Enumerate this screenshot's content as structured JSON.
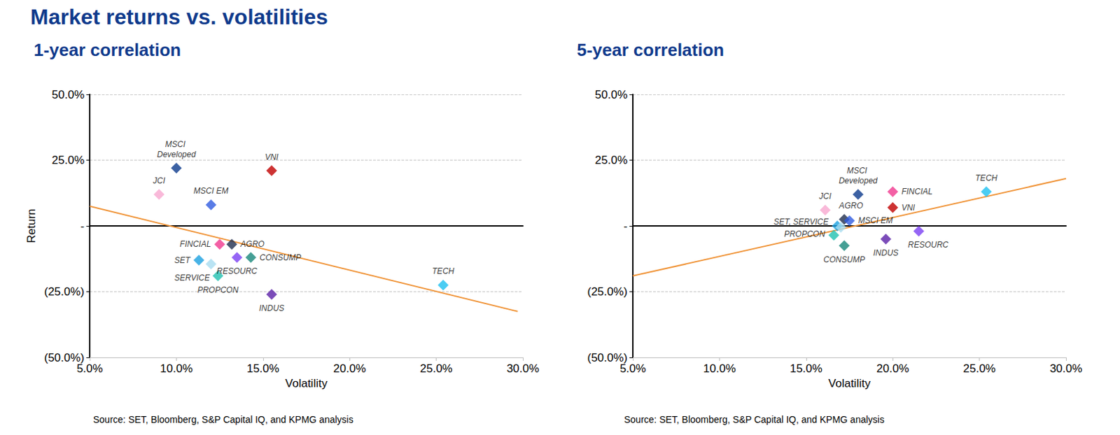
{
  "title": "Market returns vs. volatilities",
  "chart_data": [
    {
      "type": "scatter",
      "title": "1-year correlation",
      "xlabel": "Volatility",
      "ylabel": "Return",
      "source": "Source: SET, Bloomberg, S&P Capital IQ, and KPMG analysis",
      "xlim": [
        5,
        30
      ],
      "ylim": [
        -50,
        50
      ],
      "grid": true,
      "xticks": [
        {
          "value": 5,
          "label": "5.0%"
        },
        {
          "value": 10,
          "label": "10.0%"
        },
        {
          "value": 15,
          "label": "15.0%"
        },
        {
          "value": 20,
          "label": "20.0%"
        },
        {
          "value": 25,
          "label": "25.0%"
        },
        {
          "value": 30,
          "label": "30.0%"
        }
      ],
      "yticks": [
        {
          "value": -50,
          "label": "(50.0%)"
        },
        {
          "value": -25,
          "label": "(25.0%)"
        },
        {
          "value": 0,
          "label": "-"
        },
        {
          "value": 25,
          "label": "25.0%"
        },
        {
          "value": 50,
          "label": "50.0%"
        }
      ],
      "series": [
        {
          "type": "scatter",
          "marker": "diamond",
          "labels": [
            "MSCI Developed",
            "VNI",
            "JCI",
            "MSCI EM",
            "FINCIAL",
            "AGRO",
            "CONSUMP",
            "RESOURC",
            "SET",
            "SERVICE",
            "PROPCON",
            "INDUS",
            "TECH"
          ],
          "x": [
            10.0,
            15.5,
            9.0,
            12.0,
            12.5,
            13.2,
            14.3,
            13.5,
            11.3,
            12.0,
            12.4,
            15.5,
            25.4
          ],
          "values": [
            22,
            21,
            12,
            8,
            -7,
            -7,
            -12,
            -12,
            -13,
            -14.5,
            -19,
            -26,
            -22.5
          ],
          "colors": [
            "#0b3a8c",
            "#c00000",
            "#f7a8cf",
            "#2f5be0",
            "#f0388f",
            "#1f2d4d",
            "#17877a",
            "#7b3ff2",
            "#1aa0e0",
            "#a8dcf0",
            "#20c0b0",
            "#5a1fa8",
            "#1ec0f0"
          ]
        },
        {
          "type": "line",
          "line_style": "solid",
          "color": "#f0953a",
          "x": [
            5,
            29.7
          ],
          "values": [
            7.5,
            -32.5
          ]
        }
      ]
    },
    {
      "type": "scatter",
      "title": "5-year correlation",
      "xlabel": "Volatility",
      "source": "Source: SET, Bloomberg, S&P Capital IQ, and KPMG analysis",
      "xlim": [
        5,
        30
      ],
      "ylim": [
        -50,
        50
      ],
      "grid": true,
      "xticks": [
        {
          "value": 5,
          "label": "5.0%"
        },
        {
          "value": 10,
          "label": "10.0%"
        },
        {
          "value": 15,
          "label": "15.0%"
        },
        {
          "value": 20,
          "label": "20.0%"
        },
        {
          "value": 25,
          "label": "25.0%"
        },
        {
          "value": 30,
          "label": "30.0%"
        }
      ],
      "yticks": [
        {
          "value": -50,
          "label": "(50.0%)"
        },
        {
          "value": -25,
          "label": "(25.0%)"
        },
        {
          "value": 0,
          "label": "-"
        },
        {
          "value": 25,
          "label": "25.0%"
        },
        {
          "value": 50,
          "label": "50.0%"
        }
      ],
      "series": [
        {
          "type": "scatter",
          "marker": "diamond",
          "labels": [
            "MSCI Developed",
            "FINCIAL",
            "TECH",
            "JCI",
            "VNI",
            "AGRO",
            "MSCI EM",
            "SET, SERVICE",
            null,
            "PROPCON",
            "CONSUMP",
            "INDUS",
            "RESOURC"
          ],
          "x": [
            18.0,
            20.0,
            25.4,
            16.1,
            20.0,
            17.2,
            17.5,
            16.8,
            17.0,
            16.6,
            17.2,
            19.6,
            21.5
          ],
          "values": [
            12,
            13,
            13,
            6,
            7,
            2.5,
            2,
            0,
            -0.5,
            -3.5,
            -7.5,
            -5,
            -2
          ],
          "colors": [
            "#0b3a8c",
            "#f0388f",
            "#1ec0f0",
            "#f7a8cf",
            "#c00000",
            "#1f2d4d",
            "#2f5be0",
            "#1aa0e0",
            "#a8dcf0",
            "#20c0b0",
            "#17877a",
            "#5a1fa8",
            "#7b3ff2"
          ]
        },
        {
          "type": "line",
          "line_style": "solid",
          "color": "#f0953a",
          "x": [
            5,
            30
          ],
          "values": [
            -19,
            18
          ]
        }
      ]
    }
  ]
}
